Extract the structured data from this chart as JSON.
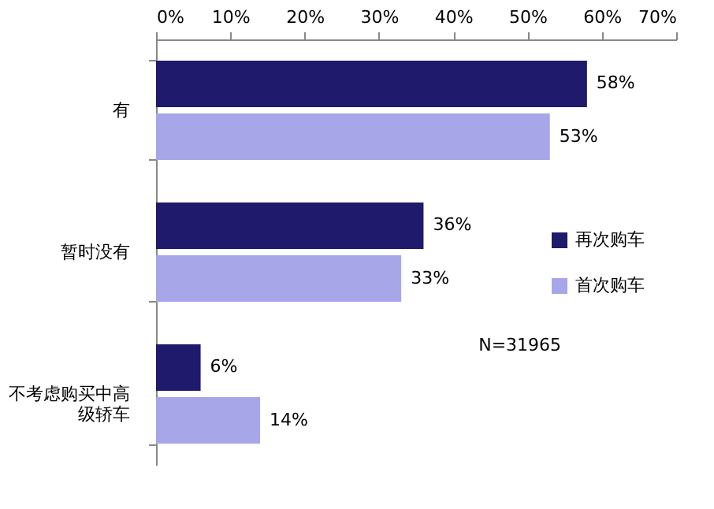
{
  "chart_data": {
    "type": "bar",
    "orientation": "horizontal",
    "categories": [
      "有",
      "暂时没有",
      "不考虑购买中高级轿车"
    ],
    "series": [
      {
        "name": "再次购车",
        "color": "#1f1a6b",
        "values": [
          58,
          36,
          6
        ],
        "value_labels": [
          "58%",
          "36%",
          "6%"
        ]
      },
      {
        "name": "首次购车",
        "color": "#a6a6e8",
        "values": [
          53,
          33,
          14
        ],
        "value_labels": [
          "53%",
          "33%",
          "14%"
        ]
      }
    ],
    "xlim": [
      0,
      70
    ],
    "xticks": [
      {
        "value": 0,
        "label": "0%"
      },
      {
        "value": 10,
        "label": "10%"
      },
      {
        "value": 20,
        "label": "20%"
      },
      {
        "value": 30,
        "label": "30%"
      },
      {
        "value": 40,
        "label": "40%"
      },
      {
        "value": 50,
        "label": "50%"
      },
      {
        "value": 60,
        "label": "60%"
      },
      {
        "value": 70,
        "label": "70%"
      }
    ],
    "annotations": [
      "N=31965"
    ],
    "legend": "right",
    "grid": false
  }
}
